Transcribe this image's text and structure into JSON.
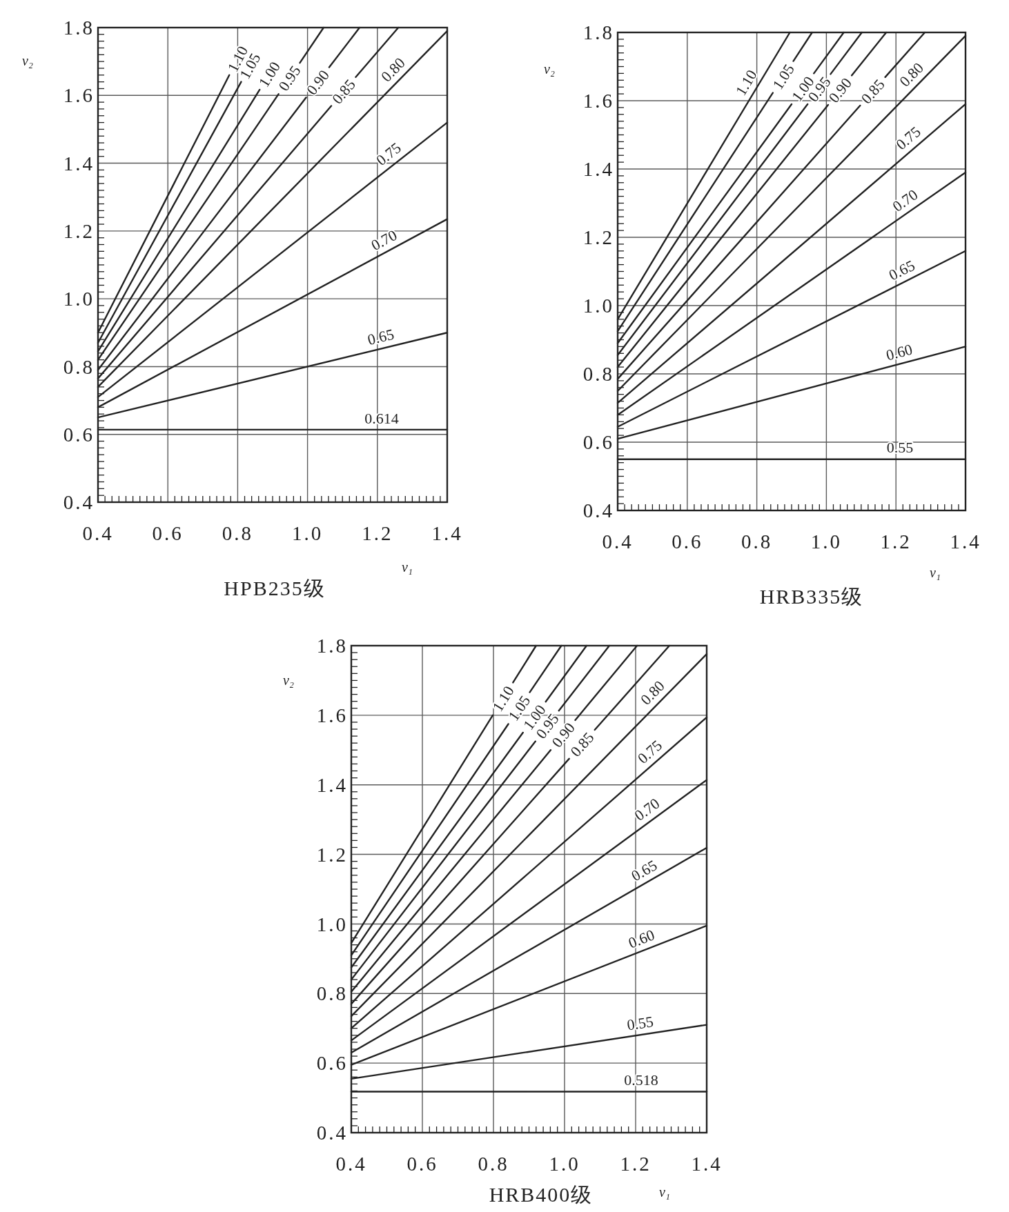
{
  "chart_data": [
    {
      "type": "line",
      "title": "HPB235级",
      "xlabel": "ν₁",
      "ylabel": "ν₂",
      "xlim": [
        0.4,
        1.4
      ],
      "ylim": [
        0.4,
        1.8
      ],
      "grid": true,
      "xticks": [
        0.4,
        0.6,
        0.8,
        {
          "value": 1.0,
          "label": "1.0"
        },
        1.2,
        1.4,
        {
          "value": 0.42,
          "label": null
        },
        {
          "value": 0.44,
          "label": null
        },
        {
          "value": 0.46,
          "label": null
        },
        {
          "value": 0.48,
          "label": null
        },
        {
          "value": 0.5,
          "label": null
        },
        {
          "value": 0.52,
          "label": null
        },
        {
          "value": 0.54,
          "label": null
        },
        {
          "value": 0.56,
          "label": null
        },
        {
          "value": 0.58,
          "label": null
        },
        {
          "value": 0.62,
          "label": null
        },
        {
          "value": 0.64,
          "label": null
        },
        {
          "value": 0.66,
          "label": null
        },
        {
          "value": 0.68,
          "label": null
        },
        {
          "value": 0.7,
          "label": null
        },
        {
          "value": 0.72,
          "label": null
        },
        {
          "value": 0.74,
          "label": null
        },
        {
          "value": 0.76,
          "label": null
        },
        {
          "value": 0.78,
          "label": null
        },
        {
          "value": 0.82,
          "label": null
        },
        {
          "value": 0.84,
          "label": null
        },
        {
          "value": 0.86,
          "label": null
        },
        {
          "value": 0.88,
          "label": null
        },
        {
          "value": 0.9,
          "label": null
        },
        {
          "value": 0.92,
          "label": null
        },
        {
          "value": 0.94,
          "label": null
        },
        {
          "value": 0.96,
          "label": null
        },
        {
          "value": 0.98,
          "label": null
        },
        {
          "value": 1.02,
          "label": null
        },
        {
          "value": 1.04,
          "label": null
        },
        {
          "value": 1.06,
          "label": null
        },
        {
          "value": 1.08,
          "label": null
        },
        {
          "value": 1.1,
          "label": null
        },
        {
          "value": 1.12,
          "label": null
        },
        {
          "value": 1.14,
          "label": null
        },
        {
          "value": 1.16,
          "label": null
        },
        {
          "value": 1.18,
          "label": null
        },
        {
          "value": 1.22,
          "label": null
        },
        {
          "value": 1.24,
          "label": null
        },
        {
          "value": 1.26,
          "label": null
        },
        {
          "value": 1.28,
          "label": null
        },
        {
          "value": 1.3,
          "label": null
        },
        {
          "value": 1.32,
          "label": null
        },
        {
          "value": 1.34,
          "label": null
        },
        {
          "value": 1.36,
          "label": null
        },
        {
          "value": 1.38,
          "label": null
        }
      ],
      "yticks": [
        0.4,
        0.6,
        0.8,
        {
          "value": 1.0,
          "label": "1.0"
        },
        1.2,
        1.4,
        1.6,
        1.8,
        {
          "value": 0.42,
          "label": null
        },
        {
          "value": 0.44,
          "label": null
        },
        {
          "value": 0.46,
          "label": null
        },
        {
          "value": 0.48,
          "label": null
        },
        {
          "value": 0.5,
          "label": null
        },
        {
          "value": 0.52,
          "label": null
        },
        {
          "value": 0.54,
          "label": null
        },
        {
          "value": 0.56,
          "label": null
        },
        {
          "value": 0.58,
          "label": null
        },
        {
          "value": 0.62,
          "label": null
        },
        {
          "value": 0.64,
          "label": null
        },
        {
          "value": 0.66,
          "label": null
        },
        {
          "value": 0.68,
          "label": null
        },
        {
          "value": 0.7,
          "label": null
        },
        {
          "value": 0.72,
          "label": null
        },
        {
          "value": 0.74,
          "label": null
        },
        {
          "value": 0.76,
          "label": null
        },
        {
          "value": 0.78,
          "label": null
        },
        {
          "value": 0.82,
          "label": null
        },
        {
          "value": 0.84,
          "label": null
        },
        {
          "value": 0.86,
          "label": null
        },
        {
          "value": 0.88,
          "label": null
        },
        {
          "value": 0.9,
          "label": null
        },
        {
          "value": 0.92,
          "label": null
        },
        {
          "value": 0.94,
          "label": null
        },
        {
          "value": 0.96,
          "label": null
        },
        {
          "value": 0.98,
          "label": null
        },
        {
          "value": 1.02,
          "label": null
        },
        {
          "value": 1.04,
          "label": null
        },
        {
          "value": 1.06,
          "label": null
        },
        {
          "value": 1.08,
          "label": null
        },
        {
          "value": 1.1,
          "label": null
        },
        {
          "value": 1.12,
          "label": null
        },
        {
          "value": 1.14,
          "label": null
        },
        {
          "value": 1.16,
          "label": null
        },
        {
          "value": 1.18,
          "label": null
        },
        {
          "value": 1.22,
          "label": null
        },
        {
          "value": 1.24,
          "label": null
        },
        {
          "value": 1.26,
          "label": null
        },
        {
          "value": 1.28,
          "label": null
        },
        {
          "value": 1.3,
          "label": null
        },
        {
          "value": 1.32,
          "label": null
        },
        {
          "value": 1.34,
          "label": null
        },
        {
          "value": 1.36,
          "label": null
        },
        {
          "value": 1.38,
          "label": null
        },
        {
          "value": 1.42,
          "label": null
        },
        {
          "value": 1.44,
          "label": null
        },
        {
          "value": 1.46,
          "label": null
        },
        {
          "value": 1.48,
          "label": null
        },
        {
          "value": 1.5,
          "label": null
        },
        {
          "value": 1.52,
          "label": null
        },
        {
          "value": 1.54,
          "label": null
        },
        {
          "value": 1.56,
          "label": null
        },
        {
          "value": 1.58,
          "label": null
        },
        {
          "value": 1.62,
          "label": null
        },
        {
          "value": 1.64,
          "label": null
        },
        {
          "value": 1.66,
          "label": null
        },
        {
          "value": 1.68,
          "label": null
        },
        {
          "value": 1.7,
          "label": null
        },
        {
          "value": 1.72,
          "label": null
        },
        {
          "value": 1.74,
          "label": null
        },
        {
          "value": 1.76,
          "label": null
        },
        {
          "value": 1.78,
          "label": null
        }
      ],
      "series": [
        {
          "name": "0.614",
          "color": "#222222",
          "x": [
            0.4,
            1.4
          ],
          "values": [
            0.614,
            0.614
          ]
        },
        {
          "name": "0.65",
          "color": "#222222",
          "x": [
            0.4,
            1.4
          ],
          "values": [
            0.65,
            0.9
          ]
        },
        {
          "name": "0.70",
          "color": "#222222",
          "x": [
            0.4,
            1.4
          ],
          "values": [
            0.68,
            1.235
          ]
        },
        {
          "name": "0.75",
          "color": "#222222",
          "x": [
            0.4,
            1.4
          ],
          "values": [
            0.71,
            1.52
          ]
        },
        {
          "name": "0.80",
          "color": "#222222",
          "x": [
            0.4,
            1.4
          ],
          "values": [
            0.74,
            1.79
          ]
        },
        {
          "name": "0.85",
          "color": "#222222",
          "x": [
            0.4,
            1.068,
            1.103,
            1.138,
            1.26
          ],
          "values": [
            0.765,
            1.569,
            null,
            1.654,
            1.8
          ]
        },
        {
          "name": "0.90",
          "color": "#222222",
          "x": [
            0.4,
            0.996,
            1.029,
            1.062,
            1.149
          ],
          "values": [
            0.79,
            1.594,
            null,
            1.683,
            1.8
          ]
        },
        {
          "name": "0.95",
          "color": "#222222",
          "x": [
            0.4,
            0.917,
            0.948,
            0.978,
            1.046
          ],
          "values": [
            0.82,
            1.604,
            null,
            1.696,
            1.8
          ]
        },
        {
          "name": "1.00",
          "color": "#222222",
          "x": [
            0.4,
            0.863
          ],
          "values": [
            0.845,
            1.617
          ]
        },
        {
          "name": "1.05",
          "color": "#222222",
          "x": [
            0.4,
            0.81
          ],
          "values": [
            0.87,
            1.64
          ]
        },
        {
          "name": "1.10",
          "color": "#222222",
          "x": [
            0.4,
            0.776
          ],
          "values": [
            0.9,
            1.66
          ]
        }
      ]
    },
    {
      "type": "line",
      "title": "HRB335级",
      "xlabel": "ν₁",
      "ylabel": "ν₂",
      "xlim": [
        0.4,
        1.4
      ],
      "ylim": [
        0.4,
        1.8
      ],
      "grid": true,
      "xticks": [
        0.4,
        0.6,
        0.8,
        {
          "value": 1.0,
          "label": "1.0"
        },
        1.2,
        1.4,
        {
          "value": 0.42,
          "label": null
        },
        {
          "value": 0.44,
          "label": null
        },
        {
          "value": 0.46,
          "label": null
        },
        {
          "value": 0.48,
          "label": null
        },
        {
          "value": 0.5,
          "label": null
        },
        {
          "value": 0.52,
          "label": null
        },
        {
          "value": 0.54,
          "label": null
        },
        {
          "value": 0.56,
          "label": null
        },
        {
          "value": 0.58,
          "label": null
        },
        {
          "value": 0.62,
          "label": null
        },
        {
          "value": 0.64,
          "label": null
        },
        {
          "value": 0.66,
          "label": null
        },
        {
          "value": 0.68,
          "label": null
        },
        {
          "value": 0.7,
          "label": null
        },
        {
          "value": 0.72,
          "label": null
        },
        {
          "value": 0.74,
          "label": null
        },
        {
          "value": 0.76,
          "label": null
        },
        {
          "value": 0.78,
          "label": null
        },
        {
          "value": 0.82,
          "label": null
        },
        {
          "value": 0.84,
          "label": null
        },
        {
          "value": 0.86,
          "label": null
        },
        {
          "value": 0.88,
          "label": null
        },
        {
          "value": 0.9,
          "label": null
        },
        {
          "value": 0.92,
          "label": null
        },
        {
          "value": 0.94,
          "label": null
        },
        {
          "value": 0.96,
          "label": null
        },
        {
          "value": 0.98,
          "label": null
        },
        {
          "value": 1.02,
          "label": null
        },
        {
          "value": 1.04,
          "label": null
        },
        {
          "value": 1.06,
          "label": null
        },
        {
          "value": 1.08,
          "label": null
        },
        {
          "value": 1.1,
          "label": null
        },
        {
          "value": 1.12,
          "label": null
        },
        {
          "value": 1.14,
          "label": null
        },
        {
          "value": 1.16,
          "label": null
        },
        {
          "value": 1.18,
          "label": null
        },
        {
          "value": 1.22,
          "label": null
        },
        {
          "value": 1.24,
          "label": null
        },
        {
          "value": 1.26,
          "label": null
        },
        {
          "value": 1.28,
          "label": null
        },
        {
          "value": 1.3,
          "label": null
        },
        {
          "value": 1.32,
          "label": null
        },
        {
          "value": 1.34,
          "label": null
        },
        {
          "value": 1.36,
          "label": null
        },
        {
          "value": 1.38,
          "label": null
        }
      ],
      "yticks": [
        0.4,
        0.6,
        0.8,
        {
          "value": 1.0,
          "label": "1.0"
        },
        1.2,
        1.4,
        1.6,
        1.8,
        {
          "value": 0.42,
          "label": null
        },
        {
          "value": 0.44,
          "label": null
        },
        {
          "value": 0.46,
          "label": null
        },
        {
          "value": 0.48,
          "label": null
        },
        {
          "value": 0.5,
          "label": null
        },
        {
          "value": 0.52,
          "label": null
        },
        {
          "value": 0.54,
          "label": null
        },
        {
          "value": 0.56,
          "label": null
        },
        {
          "value": 0.58,
          "label": null
        },
        {
          "value": 0.62,
          "label": null
        },
        {
          "value": 0.64,
          "label": null
        },
        {
          "value": 0.66,
          "label": null
        },
        {
          "value": 0.68,
          "label": null
        },
        {
          "value": 0.7,
          "label": null
        },
        {
          "value": 0.72,
          "label": null
        },
        {
          "value": 0.74,
          "label": null
        },
        {
          "value": 0.76,
          "label": null
        },
        {
          "value": 0.78,
          "label": null
        },
        {
          "value": 0.82,
          "label": null
        },
        {
          "value": 0.84,
          "label": null
        },
        {
          "value": 0.86,
          "label": null
        },
        {
          "value": 0.88,
          "label": null
        },
        {
          "value": 0.9,
          "label": null
        },
        {
          "value": 0.92,
          "label": null
        },
        {
          "value": 0.94,
          "label": null
        },
        {
          "value": 0.96,
          "label": null
        },
        {
          "value": 0.98,
          "label": null
        },
        {
          "value": 1.02,
          "label": null
        },
        {
          "value": 1.04,
          "label": null
        },
        {
          "value": 1.06,
          "label": null
        },
        {
          "value": 1.08,
          "label": null
        },
        {
          "value": 1.1,
          "label": null
        },
        {
          "value": 1.12,
          "label": null
        },
        {
          "value": 1.14,
          "label": null
        },
        {
          "value": 1.16,
          "label": null
        },
        {
          "value": 1.18,
          "label": null
        },
        {
          "value": 1.22,
          "label": null
        },
        {
          "value": 1.24,
          "label": null
        },
        {
          "value": 1.26,
          "label": null
        },
        {
          "value": 1.28,
          "label": null
        },
        {
          "value": 1.3,
          "label": null
        },
        {
          "value": 1.32,
          "label": null
        },
        {
          "value": 1.34,
          "label": null
        },
        {
          "value": 1.36,
          "label": null
        },
        {
          "value": 1.38,
          "label": null
        },
        {
          "value": 1.42,
          "label": null
        },
        {
          "value": 1.44,
          "label": null
        },
        {
          "value": 1.46,
          "label": null
        },
        {
          "value": 1.48,
          "label": null
        },
        {
          "value": 1.5,
          "label": null
        },
        {
          "value": 1.52,
          "label": null
        },
        {
          "value": 1.54,
          "label": null
        },
        {
          "value": 1.56,
          "label": null
        },
        {
          "value": 1.58,
          "label": null
        },
        {
          "value": 1.62,
          "label": null
        },
        {
          "value": 1.64,
          "label": null
        },
        {
          "value": 1.66,
          "label": null
        },
        {
          "value": 1.68,
          "label": null
        },
        {
          "value": 1.7,
          "label": null
        },
        {
          "value": 1.72,
          "label": null
        },
        {
          "value": 1.74,
          "label": null
        },
        {
          "value": 1.76,
          "label": null
        },
        {
          "value": 1.78,
          "label": null
        }
      ],
      "series": [
        {
          "name": "0.55",
          "color": "#222222",
          "x": [
            0.4,
            1.4
          ],
          "values": [
            0.55,
            0.55
          ]
        },
        {
          "name": "0.60",
          "color": "#222222",
          "x": [
            0.4,
            1.4
          ],
          "values": [
            0.61,
            0.88
          ]
        },
        {
          "name": "0.65",
          "color": "#222222",
          "x": [
            0.4,
            1.4
          ],
          "values": [
            0.645,
            1.16
          ]
        },
        {
          "name": "0.70",
          "color": "#222222",
          "x": [
            0.4,
            1.4
          ],
          "values": [
            0.68,
            1.39
          ]
        },
        {
          "name": "0.75",
          "color": "#222222",
          "x": [
            0.4,
            1.4
          ],
          "values": [
            0.715,
            1.59
          ]
        },
        {
          "name": "0.80",
          "color": "#222222",
          "x": [
            0.4,
            1.4
          ],
          "values": [
            0.75,
            1.79
          ]
        },
        {
          "name": "0.85",
          "color": "#222222",
          "x": [
            0.4,
            1.097,
            1.133,
            1.169,
            1.283
          ],
          "values": [
            0.785,
            1.586,
            null,
            1.669,
            1.8
          ]
        },
        {
          "name": "0.90",
          "color": "#222222",
          "x": [
            0.4,
            1.005,
            1.039,
            1.073,
            1.172
          ],
          "values": [
            0.82,
            1.588,
            null,
            1.674,
            1.8
          ]
        },
        {
          "name": "0.95",
          "color": "#222222",
          "x": [
            0.4,
            0.946,
            0.979,
            1.012,
            1.102
          ],
          "values": [
            0.855,
            1.59,
            null,
            1.678,
            1.8
          ]
        },
        {
          "name": "1.00",
          "color": "#222222",
          "x": [
            0.4,
            0.9,
            0.932,
            0.964,
            1.05
          ],
          "values": [
            0.89,
            1.59,
            null,
            1.68,
            1.8
          ]
        },
        {
          "name": "1.05",
          "color": "#222222",
          "x": [
            0.4,
            0.846,
            0.876,
            0.905,
            0.959
          ],
          "values": [
            0.925,
            1.623,
            null,
            1.716,
            1.8
          ]
        },
        {
          "name": "1.10",
          "color": "#222222",
          "x": [
            0.4,
            0.895
          ],
          "values": [
            0.96,
            1.8
          ]
        }
      ]
    },
    {
      "type": "line",
      "title": "HRB400级",
      "xlabel": "ν₁",
      "ylabel": "ν₂",
      "xlim": [
        0.4,
        1.4
      ],
      "ylim": [
        0.4,
        1.8
      ],
      "grid": true,
      "xticks": [
        0.4,
        0.6,
        0.8,
        {
          "value": 1.0,
          "label": "1.0"
        },
        1.2,
        1.4,
        {
          "value": 0.42,
          "label": null
        },
        {
          "value": 0.44,
          "label": null
        },
        {
          "value": 0.46,
          "label": null
        },
        {
          "value": 0.48,
          "label": null
        },
        {
          "value": 0.5,
          "label": null
        },
        {
          "value": 0.52,
          "label": null
        },
        {
          "value": 0.54,
          "label": null
        },
        {
          "value": 0.56,
          "label": null
        },
        {
          "value": 0.58,
          "label": null
        },
        {
          "value": 0.62,
          "label": null
        },
        {
          "value": 0.64,
          "label": null
        },
        {
          "value": 0.66,
          "label": null
        },
        {
          "value": 0.68,
          "label": null
        },
        {
          "value": 0.7,
          "label": null
        },
        {
          "value": 0.72,
          "label": null
        },
        {
          "value": 0.74,
          "label": null
        },
        {
          "value": 0.76,
          "label": null
        },
        {
          "value": 0.78,
          "label": null
        },
        {
          "value": 0.82,
          "label": null
        },
        {
          "value": 0.84,
          "label": null
        },
        {
          "value": 0.86,
          "label": null
        },
        {
          "value": 0.88,
          "label": null
        },
        {
          "value": 0.9,
          "label": null
        },
        {
          "value": 0.92,
          "label": null
        },
        {
          "value": 0.94,
          "label": null
        },
        {
          "value": 0.96,
          "label": null
        },
        {
          "value": 0.98,
          "label": null
        },
        {
          "value": 1.02,
          "label": null
        },
        {
          "value": 1.04,
          "label": null
        },
        {
          "value": 1.06,
          "label": null
        },
        {
          "value": 1.08,
          "label": null
        },
        {
          "value": 1.1,
          "label": null
        },
        {
          "value": 1.12,
          "label": null
        },
        {
          "value": 1.14,
          "label": null
        },
        {
          "value": 1.16,
          "label": null
        },
        {
          "value": 1.18,
          "label": null
        },
        {
          "value": 1.22,
          "label": null
        },
        {
          "value": 1.24,
          "label": null
        },
        {
          "value": 1.26,
          "label": null
        },
        {
          "value": 1.28,
          "label": null
        },
        {
          "value": 1.3,
          "label": null
        },
        {
          "value": 1.32,
          "label": null
        },
        {
          "value": 1.34,
          "label": null
        },
        {
          "value": 1.36,
          "label": null
        },
        {
          "value": 1.38,
          "label": null
        }
      ],
      "yticks": [
        0.4,
        0.6,
        0.8,
        {
          "value": 1.0,
          "label": "1.0"
        },
        1.2,
        1.4,
        1.6,
        1.8,
        {
          "value": 0.42,
          "label": null
        },
        {
          "value": 0.44,
          "label": null
        },
        {
          "value": 0.46,
          "label": null
        },
        {
          "value": 0.48,
          "label": null
        },
        {
          "value": 0.5,
          "label": null
        },
        {
          "value": 0.52,
          "label": null
        },
        {
          "value": 0.54,
          "label": null
        },
        {
          "value": 0.56,
          "label": null
        },
        {
          "value": 0.58,
          "label": null
        },
        {
          "value": 0.62,
          "label": null
        },
        {
          "value": 0.64,
          "label": null
        },
        {
          "value": 0.66,
          "label": null
        },
        {
          "value": 0.68,
          "label": null
        },
        {
          "value": 0.7,
          "label": null
        },
        {
          "value": 0.72,
          "label": null
        },
        {
          "value": 0.74,
          "label": null
        },
        {
          "value": 0.76,
          "label": null
        },
        {
          "value": 0.78,
          "label": null
        },
        {
          "value": 0.82,
          "label": null
        },
        {
          "value": 0.84,
          "label": null
        },
        {
          "value": 0.86,
          "label": null
        },
        {
          "value": 0.88,
          "label": null
        },
        {
          "value": 0.9,
          "label": null
        },
        {
          "value": 0.92,
          "label": null
        },
        {
          "value": 0.94,
          "label": null
        },
        {
          "value": 0.96,
          "label": null
        },
        {
          "value": 0.98,
          "label": null
        },
        {
          "value": 1.02,
          "label": null
        },
        {
          "value": 1.04,
          "label": null
        },
        {
          "value": 1.06,
          "label": null
        },
        {
          "value": 1.08,
          "label": null
        },
        {
          "value": 1.1,
          "label": null
        },
        {
          "value": 1.12,
          "label": null
        },
        {
          "value": 1.14,
          "label": null
        },
        {
          "value": 1.16,
          "label": null
        },
        {
          "value": 1.18,
          "label": null
        },
        {
          "value": 1.22,
          "label": null
        },
        {
          "value": 1.24,
          "label": null
        },
        {
          "value": 1.26,
          "label": null
        },
        {
          "value": 1.28,
          "label": null
        },
        {
          "value": 1.3,
          "label": null
        },
        {
          "value": 1.32,
          "label": null
        },
        {
          "value": 1.34,
          "label": null
        },
        {
          "value": 1.36,
          "label": null
        },
        {
          "value": 1.38,
          "label": null
        },
        {
          "value": 1.42,
          "label": null
        },
        {
          "value": 1.44,
          "label": null
        },
        {
          "value": 1.46,
          "label": null
        },
        {
          "value": 1.48,
          "label": null
        },
        {
          "value": 1.5,
          "label": null
        },
        {
          "value": 1.52,
          "label": null
        },
        {
          "value": 1.54,
          "label": null
        },
        {
          "value": 1.56,
          "label": null
        },
        {
          "value": 1.58,
          "label": null
        },
        {
          "value": 1.62,
          "label": null
        },
        {
          "value": 1.64,
          "label": null
        },
        {
          "value": 1.66,
          "label": null
        },
        {
          "value": 1.68,
          "label": null
        },
        {
          "value": 1.7,
          "label": null
        },
        {
          "value": 1.72,
          "label": null
        },
        {
          "value": 1.74,
          "label": null
        },
        {
          "value": 1.76,
          "label": null
        },
        {
          "value": 1.78,
          "label": null
        }
      ],
      "series": [
        {
          "name": "0.518",
          "color": "#222222",
          "x": [
            0.4,
            1.4
          ],
          "values": [
            0.518,
            0.518
          ]
        },
        {
          "name": "0.55",
          "color": "#222222",
          "x": [
            0.4,
            1.4
          ],
          "values": [
            0.555,
            0.71
          ]
        },
        {
          "name": "0.60",
          "color": "#222222",
          "x": [
            0.4,
            1.4
          ],
          "values": [
            0.595,
            0.995
          ]
        },
        {
          "name": "0.65",
          "color": "#222222",
          "x": [
            0.4,
            1.4
          ],
          "values": [
            0.63,
            1.219
          ]
        },
        {
          "name": "0.70",
          "color": "#222222",
          "x": [
            0.4,
            1.4
          ],
          "values": [
            0.665,
            1.414
          ]
        },
        {
          "name": "0.75",
          "color": "#222222",
          "x": [
            0.4,
            1.4
          ],
          "values": [
            0.7,
            1.594
          ]
        },
        {
          "name": "0.80",
          "color": "#222222",
          "x": [
            0.4,
            1.4
          ],
          "values": [
            0.735,
            1.776
          ]
        },
        {
          "name": "0.85",
          "color": "#222222",
          "x": [
            0.4,
            1.013,
            1.049,
            1.085,
            1.295
          ],
          "values": [
            0.77,
            1.475,
            null,
            1.558,
            1.8
          ]
        },
        {
          "name": "0.90",
          "color": "#222222",
          "x": [
            0.4,
            0.961,
            0.996,
            1.03,
            1.204
          ],
          "values": [
            0.805,
            1.5,
            null,
            1.586,
            1.8
          ]
        },
        {
          "name": "0.95",
          "color": "#222222",
          "x": [
            0.4,
            0.918,
            0.951,
            0.984,
            1.126
          ],
          "values": [
            0.84,
            1.525,
            null,
            1.613,
            1.8
          ]
        },
        {
          "name": "1.00",
          "color": "#222222",
          "x": [
            0.4,
            0.883,
            0.915,
            0.947,
            1.062
          ],
          "values": [
            0.875,
            1.55,
            null,
            1.639,
            1.8
          ]
        },
        {
          "name": "1.05",
          "color": "#222222",
          "x": [
            0.4,
            0.842,
            0.872,
            0.902,
            0.991
          ],
          "values": [
            0.91,
            1.575,
            null,
            1.666,
            1.8
          ]
        },
        {
          "name": "1.10",
          "color": "#222222",
          "x": [
            0.4,
            0.798,
            0.827,
            0.855,
            0.92
          ],
          "values": [
            0.945,
            1.6,
            null,
            1.694,
            1.8
          ]
        }
      ]
    }
  ]
}
